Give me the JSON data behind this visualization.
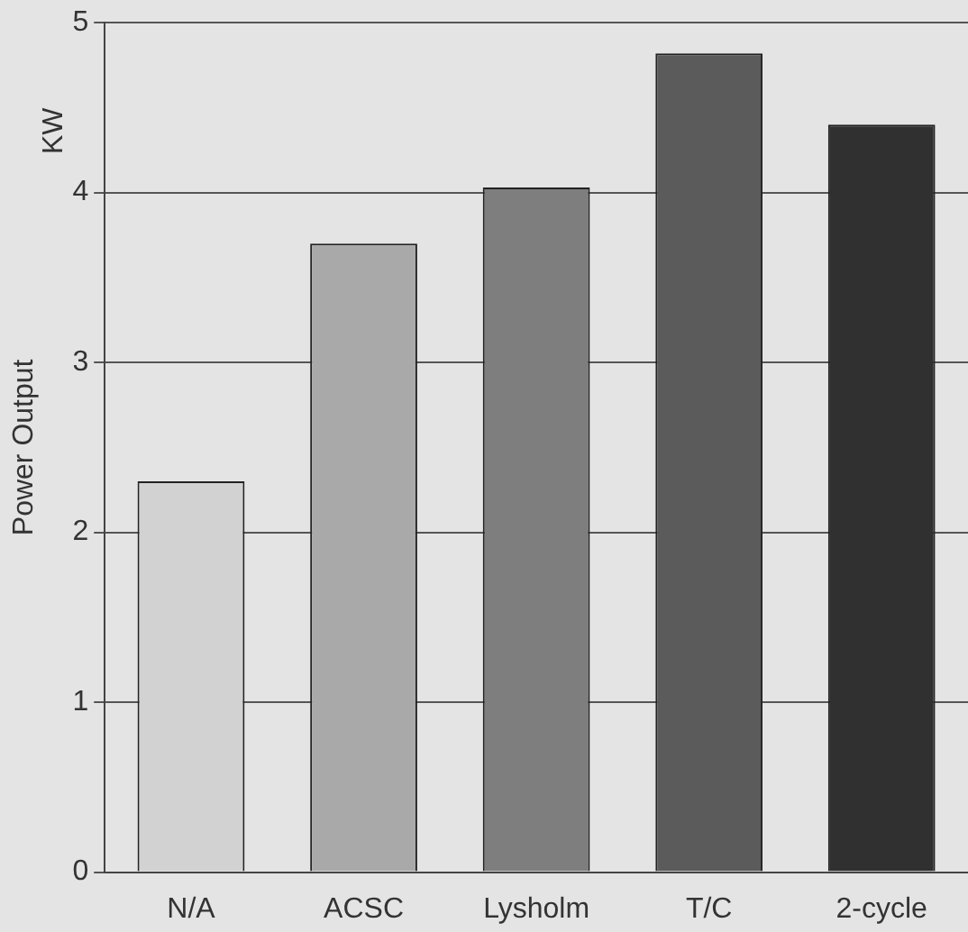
{
  "chart_data": {
    "type": "bar",
    "ylabel": "Power Output",
    "annotations": [
      "KW"
    ],
    "categories": [
      "N/A",
      "ACSC",
      "Lysholm",
      "T/C",
      "2-cycle"
    ],
    "values": [
      2.3,
      3.7,
      4.03,
      4.82,
      4.4
    ],
    "colors": [
      "#d2d2d2",
      "#a9a9a9",
      "#7e7e7e",
      "#5b5b5b",
      "#303030"
    ],
    "ylim": [
      0,
      5
    ],
    "yticks": [
      0,
      1,
      2,
      3,
      4,
      5
    ],
    "grid": "y",
    "legend": false
  }
}
